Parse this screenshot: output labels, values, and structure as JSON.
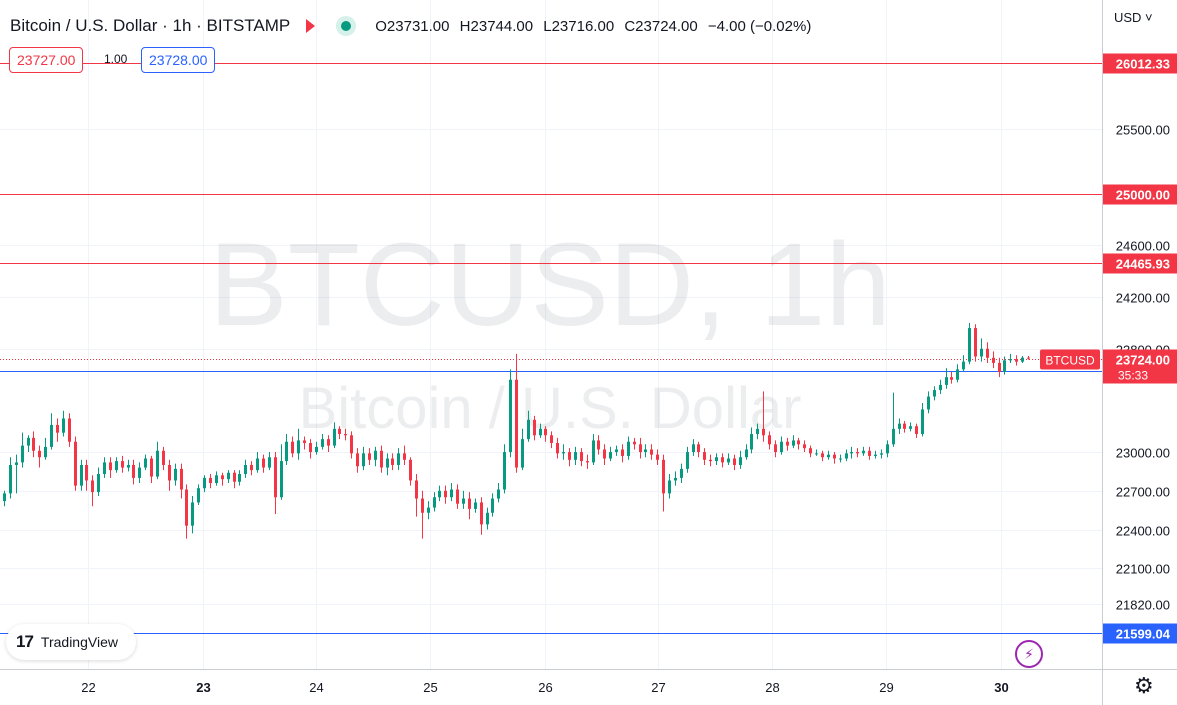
{
  "header": {
    "title": "Bitcoin / U.S. Dollar · 1h · BITSTAMP",
    "open": "O23731.00",
    "high": "H23744.00",
    "low": "L23716.00",
    "close": "C23724.00",
    "change": "−4.00 (−0.02%)",
    "status_color": "#089981",
    "flag_color": "#f23645"
  },
  "order": {
    "bid": "23727.00",
    "spread": "1.00",
    "ask": "23728.00"
  },
  "currency_label": "USD ˅",
  "watermark": {
    "symbol": "BTCUSD, 1h",
    "name": "Bitcoin / U.S. Dollar"
  },
  "branding": {
    "logo_mark": "17",
    "logo_text": "TradingView"
  },
  "icons": {
    "bolt": "bolt-icon",
    "settings": "gear-icon"
  },
  "chart_data": {
    "type": "candlestick",
    "x_ticks": [
      "22",
      "23",
      "24",
      "25",
      "26",
      "27",
      "28",
      "29",
      "30"
    ],
    "y_ticks": [
      25500,
      24600,
      24200,
      23800,
      23000,
      22700,
      22400,
      22100,
      21820
    ],
    "y_tick_labels": [
      "25500.00",
      "24600.00",
      "24200.00",
      "23800.00",
      "23000.00",
      "22700.00",
      "22400.00",
      "22100.00",
      "21820.00"
    ],
    "ylim": [
      21400,
      26400
    ],
    "horizontal_lines": [
      {
        "value": 26012.33,
        "label": "26012.33",
        "color": "#f23645"
      },
      {
        "value": 25000.0,
        "label": "25000.00",
        "color": "#f23645"
      },
      {
        "value": 24465.93,
        "label": "24465.93",
        "color": "#f23645"
      },
      {
        "value": 23629.47,
        "label": "23629.47",
        "color": "#2962ff"
      },
      {
        "value": 21599.04,
        "label": "21599.04",
        "color": "#2962ff"
      }
    ],
    "last_price": {
      "value": 23724.0,
      "label": "23724.00",
      "countdown": "35:33",
      "symbol": "BTCUSD",
      "color": "#f23645"
    },
    "up_color": "#089981",
    "down_color": "#f23645",
    "candles": [
      [
        22620,
        22680,
        22580,
        22700
      ],
      [
        22680,
        22900,
        22640,
        22960
      ],
      [
        22900,
        22920,
        22680,
        22980
      ],
      [
        22920,
        23050,
        22880,
        23150
      ],
      [
        23050,
        23110,
        23000,
        23130
      ],
      [
        23110,
        23010,
        22960,
        23160
      ],
      [
        23010,
        22960,
        22880,
        23050
      ],
      [
        22960,
        23040,
        22940,
        23110
      ],
      [
        23040,
        23210,
        23020,
        23300
      ],
      [
        23210,
        23150,
        23080,
        23260
      ],
      [
        23150,
        23260,
        23120,
        23320
      ],
      [
        23260,
        23080,
        23040,
        23300
      ],
      [
        23080,
        22740,
        22700,
        23120
      ],
      [
        22740,
        22900,
        22700,
        22940
      ],
      [
        22900,
        22780,
        22700,
        22940
      ],
      [
        22780,
        22690,
        22580,
        22820
      ],
      [
        22690,
        22830,
        22660,
        22880
      ],
      [
        22830,
        22920,
        22800,
        22960
      ],
      [
        22920,
        22860,
        22800,
        22960
      ],
      [
        22860,
        22930,
        22840,
        22960
      ],
      [
        22930,
        22880,
        22840,
        22970
      ],
      [
        22880,
        22900,
        22850,
        22940
      ],
      [
        22900,
        22800,
        22750,
        22940
      ],
      [
        22800,
        22880,
        22760,
        22920
      ],
      [
        22880,
        22950,
        22860,
        22980
      ],
      [
        22950,
        22810,
        22760,
        22970
      ],
      [
        22810,
        23010,
        22790,
        23080
      ],
      [
        23010,
        22900,
        22860,
        23040
      ],
      [
        22900,
        22780,
        22700,
        22940
      ],
      [
        22780,
        22870,
        22740,
        22910
      ],
      [
        22870,
        22710,
        22640,
        22910
      ],
      [
        22710,
        22430,
        22330,
        22750
      ],
      [
        22430,
        22610,
        22370,
        22660
      ],
      [
        22610,
        22720,
        22590,
        22750
      ],
      [
        22720,
        22800,
        22690,
        22820
      ],
      [
        22800,
        22760,
        22720,
        22830
      ],
      [
        22760,
        22820,
        22740,
        22850
      ],
      [
        22820,
        22790,
        22740,
        22840
      ],
      [
        22790,
        22840,
        22760,
        22860
      ],
      [
        22840,
        22770,
        22720,
        22860
      ],
      [
        22770,
        22830,
        22740,
        22860
      ],
      [
        22830,
        22900,
        22800,
        22940
      ],
      [
        22900,
        22860,
        22820,
        22930
      ],
      [
        22860,
        22950,
        22840,
        23000
      ],
      [
        22950,
        22880,
        22840,
        22980
      ],
      [
        22880,
        22960,
        22860,
        23000
      ],
      [
        22960,
        22650,
        22520,
        23000
      ],
      [
        22650,
        22930,
        22630,
        23060
      ],
      [
        22930,
        23080,
        22900,
        23140
      ],
      [
        23080,
        22990,
        22960,
        23120
      ],
      [
        22990,
        23090,
        22940,
        23180
      ],
      [
        23090,
        23070,
        23020,
        23120
      ],
      [
        23070,
        23000,
        22950,
        23100
      ],
      [
        23000,
        23040,
        22980,
        23080
      ],
      [
        23040,
        23100,
        23020,
        23140
      ],
      [
        23100,
        23050,
        23000,
        23130
      ],
      [
        23050,
        23180,
        23030,
        23230
      ],
      [
        23180,
        23140,
        23100,
        23200
      ],
      [
        23140,
        23130,
        23090,
        23180
      ],
      [
        23130,
        22990,
        22950,
        23160
      ],
      [
        22990,
        22890,
        22840,
        23030
      ],
      [
        22890,
        22990,
        22860,
        23040
      ],
      [
        22990,
        22940,
        22900,
        23030
      ],
      [
        22940,
        23010,
        22890,
        23040
      ],
      [
        23010,
        22880,
        22840,
        23050
      ],
      [
        22880,
        22950,
        22820,
        22990
      ],
      [
        22950,
        22900,
        22860,
        22990
      ],
      [
        22900,
        22990,
        22860,
        23030
      ],
      [
        22990,
        22940,
        22900,
        23050
      ],
      [
        22940,
        22780,
        22740,
        22960
      ],
      [
        22780,
        22640,
        22500,
        22830
      ],
      [
        22640,
        22530,
        22330,
        22700
      ],
      [
        22530,
        22570,
        22480,
        22620
      ],
      [
        22570,
        22650,
        22540,
        22690
      ],
      [
        22650,
        22700,
        22620,
        22740
      ],
      [
        22700,
        22650,
        22600,
        22740
      ],
      [
        22650,
        22710,
        22620,
        22760
      ],
      [
        22710,
        22600,
        22560,
        22750
      ],
      [
        22600,
        22640,
        22560,
        22700
      ],
      [
        22640,
        22560,
        22480,
        22690
      ],
      [
        22560,
        22610,
        22530,
        22640
      ],
      [
        22610,
        22440,
        22360,
        22650
      ],
      [
        22440,
        22530,
        22400,
        22570
      ],
      [
        22530,
        22640,
        22500,
        22680
      ],
      [
        22640,
        22710,
        22610,
        22760
      ],
      [
        22710,
        23000,
        22680,
        23060
      ],
      [
        23000,
        23560,
        22960,
        23640
      ],
      [
        23560,
        22880,
        22840,
        23760
      ],
      [
        22880,
        23100,
        22860,
        23180
      ],
      [
        23100,
        23250,
        23080,
        23320
      ],
      [
        23250,
        23130,
        23090,
        23280
      ],
      [
        23130,
        23180,
        23110,
        23220
      ],
      [
        23180,
        23130,
        23080,
        23200
      ],
      [
        23130,
        23070,
        23030,
        23160
      ],
      [
        23070,
        22990,
        22950,
        23110
      ],
      [
        22990,
        23000,
        22940,
        23060
      ],
      [
        23000,
        22940,
        22890,
        23030
      ],
      [
        22940,
        23000,
        22900,
        23040
      ],
      [
        23000,
        22930,
        22890,
        23030
      ],
      [
        22930,
        22920,
        22870,
        22980
      ],
      [
        22920,
        23090,
        22900,
        23140
      ],
      [
        23090,
        23020,
        22980,
        23130
      ],
      [
        23020,
        22950,
        22900,
        23060
      ],
      [
        22950,
        23000,
        22930,
        23040
      ],
      [
        23000,
        23020,
        22970,
        23050
      ],
      [
        23020,
        22970,
        22920,
        23060
      ],
      [
        22970,
        23080,
        22940,
        23120
      ],
      [
        23080,
        23060,
        23020,
        23110
      ],
      [
        23060,
        23000,
        22950,
        23110
      ],
      [
        23000,
        23020,
        22960,
        23060
      ],
      [
        23020,
        22980,
        22940,
        23060
      ],
      [
        22980,
        22940,
        22900,
        23020
      ],
      [
        22940,
        22680,
        22540,
        22980
      ],
      [
        22680,
        22780,
        22640,
        22830
      ],
      [
        22780,
        22800,
        22740,
        22850
      ],
      [
        22800,
        22870,
        22760,
        22910
      ],
      [
        22870,
        23000,
        22840,
        23040
      ],
      [
        23000,
        23060,
        22970,
        23100
      ],
      [
        23060,
        23000,
        22960,
        23080
      ],
      [
        23000,
        22940,
        22900,
        23030
      ],
      [
        22940,
        22930,
        22890,
        22980
      ],
      [
        22930,
        22960,
        22900,
        22990
      ],
      [
        22960,
        22920,
        22880,
        22990
      ],
      [
        22920,
        22950,
        22900,
        22990
      ],
      [
        22950,
        22900,
        22860,
        22980
      ],
      [
        22900,
        22960,
        22870,
        23010
      ],
      [
        22960,
        23020,
        22940,
        23060
      ],
      [
        23020,
        23140,
        22990,
        23190
      ],
      [
        23140,
        23180,
        23100,
        23220
      ],
      [
        23180,
        23130,
        23080,
        23470
      ],
      [
        23130,
        23060,
        23020,
        23160
      ],
      [
        23060,
        23000,
        22960,
        23090
      ],
      [
        23000,
        23080,
        22980,
        23120
      ],
      [
        23080,
        23050,
        23010,
        23110
      ],
      [
        23050,
        23090,
        23030,
        23130
      ],
      [
        23090,
        23060,
        23020,
        23110
      ],
      [
        23060,
        23030,
        23000,
        23090
      ],
      [
        23030,
        22990,
        22960,
        23050
      ],
      [
        22990,
        22990,
        22970,
        23020
      ],
      [
        22990,
        22960,
        22930,
        23010
      ],
      [
        22960,
        22980,
        22940,
        23010
      ],
      [
        22980,
        22950,
        22910,
        23000
      ],
      [
        22950,
        22950,
        22920,
        22980
      ],
      [
        22950,
        22990,
        22930,
        23020
      ],
      [
        22990,
        23000,
        22950,
        23040
      ],
      [
        23000,
        22990,
        22960,
        23030
      ],
      [
        22990,
        23010,
        22970,
        23040
      ],
      [
        23010,
        22970,
        22940,
        23040
      ],
      [
        22970,
        22980,
        22950,
        23010
      ],
      [
        22980,
        22990,
        22950,
        23020
      ],
      [
        22990,
        23060,
        22960,
        23090
      ],
      [
        23060,
        23180,
        23040,
        23460
      ],
      [
        23180,
        23220,
        23140,
        23260
      ],
      [
        23220,
        23180,
        23150,
        23240
      ],
      [
        23180,
        23200,
        23160,
        23230
      ],
      [
        23200,
        23140,
        23110,
        23220
      ],
      [
        23140,
        23330,
        23120,
        23380
      ],
      [
        23330,
        23430,
        23300,
        23470
      ],
      [
        23430,
        23480,
        23400,
        23510
      ],
      [
        23480,
        23520,
        23450,
        23560
      ],
      [
        23520,
        23580,
        23490,
        23650
      ],
      [
        23580,
        23560,
        23530,
        23620
      ],
      [
        23560,
        23640,
        23540,
        23680
      ],
      [
        23640,
        23700,
        23620,
        23750
      ],
      [
        23700,
        23960,
        23680,
        24000
      ],
      [
        23960,
        23740,
        23700,
        23990
      ],
      [
        23740,
        23800,
        23700,
        23880
      ],
      [
        23800,
        23730,
        23690,
        23850
      ],
      [
        23730,
        23690,
        23650,
        23780
      ],
      [
        23690,
        23620,
        23580,
        23730
      ],
      [
        23620,
        23710,
        23600,
        23740
      ],
      [
        23710,
        23720,
        23690,
        23760
      ],
      [
        23720,
        23700,
        23670,
        23750
      ],
      [
        23700,
        23731,
        23690,
        23744
      ],
      [
        23731,
        23724,
        23716,
        23744
      ]
    ]
  }
}
